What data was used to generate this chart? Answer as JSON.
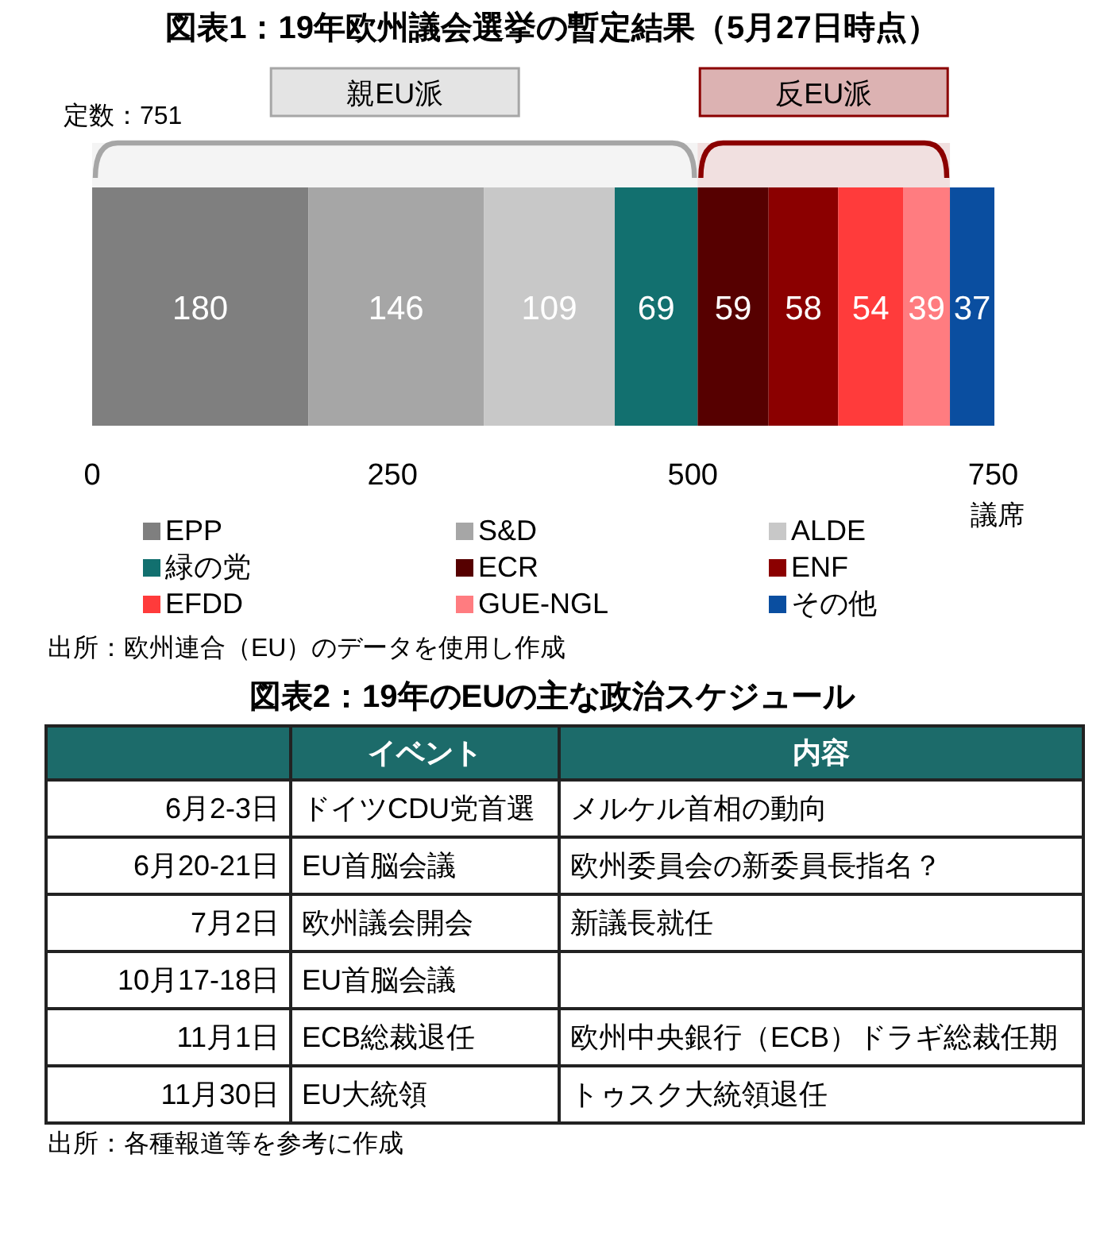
{
  "chart_data": [
    {
      "type": "bar",
      "orientation": "horizontal",
      "stacked": true,
      "title": "図表1：19年欧州議会選挙の暫定結果（5月27日時点）",
      "xlabel": "議席",
      "categories": [
        null
      ],
      "xlim": [
        0,
        751
      ],
      "xticks": [
        0,
        250,
        500,
        750
      ],
      "data_labels": true,
      "legend": "bottom",
      "grid": false,
      "series": [
        {
          "name": "EPP",
          "color": "#7f7f7f",
          "values": [
            180
          ]
        },
        {
          "name": "S&D",
          "color": "#a6a6a6",
          "values": [
            146
          ]
        },
        {
          "name": "ALDE",
          "color": "#c8c8c8",
          "values": [
            109
          ]
        },
        {
          "name": "緑の党",
          "color": "#12706f",
          "values": [
            69
          ]
        },
        {
          "name": "ECR",
          "color": "#560000",
          "values": [
            59
          ]
        },
        {
          "name": "ENF",
          "color": "#8b0000",
          "values": [
            58
          ]
        },
        {
          "name": "EFDD",
          "color": "#ff3b3b",
          "values": [
            54
          ]
        },
        {
          "name": "GUE-NGL",
          "color": "#ff7c80",
          "values": [
            39
          ]
        },
        {
          "name": "その他",
          "color": "#0a4ea0",
          "values": [
            37
          ]
        }
      ],
      "bands": [
        {
          "axis": "x",
          "from": 0,
          "to": 504,
          "label": "親EU派",
          "color": "#a6a6a6"
        },
        {
          "axis": "x",
          "from": 504,
          "to": 714,
          "label": "反EU派",
          "color": "#8b0000"
        }
      ],
      "annotations": [
        "定数：751",
        "出所：欧州連合（EU）のデータを使用し作成"
      ]
    },
    {
      "type": "other",
      "title": "図表2：19年のEUの主な政治スケジュール",
      "annotations": [
        "イベント",
        "内容",
        "6月2-3日",
        "ドイツCDU党首選",
        "メルケル首相の動向",
        "6月20-21日",
        "EU首脳会議",
        "欧州委員会の新委員長指名？",
        "7月2日",
        "欧州議会開会",
        "新議長就任",
        "10月17-18日",
        "EU首脳会議",
        null,
        "11月1日",
        "ECB総裁退任",
        "欧州中央銀行（ECB）ドラギ総裁任期",
        "11月30日",
        "EU大統領",
        "トゥスク大統領退任",
        "出所：各種報道等を参考に作成"
      ]
    }
  ]
}
